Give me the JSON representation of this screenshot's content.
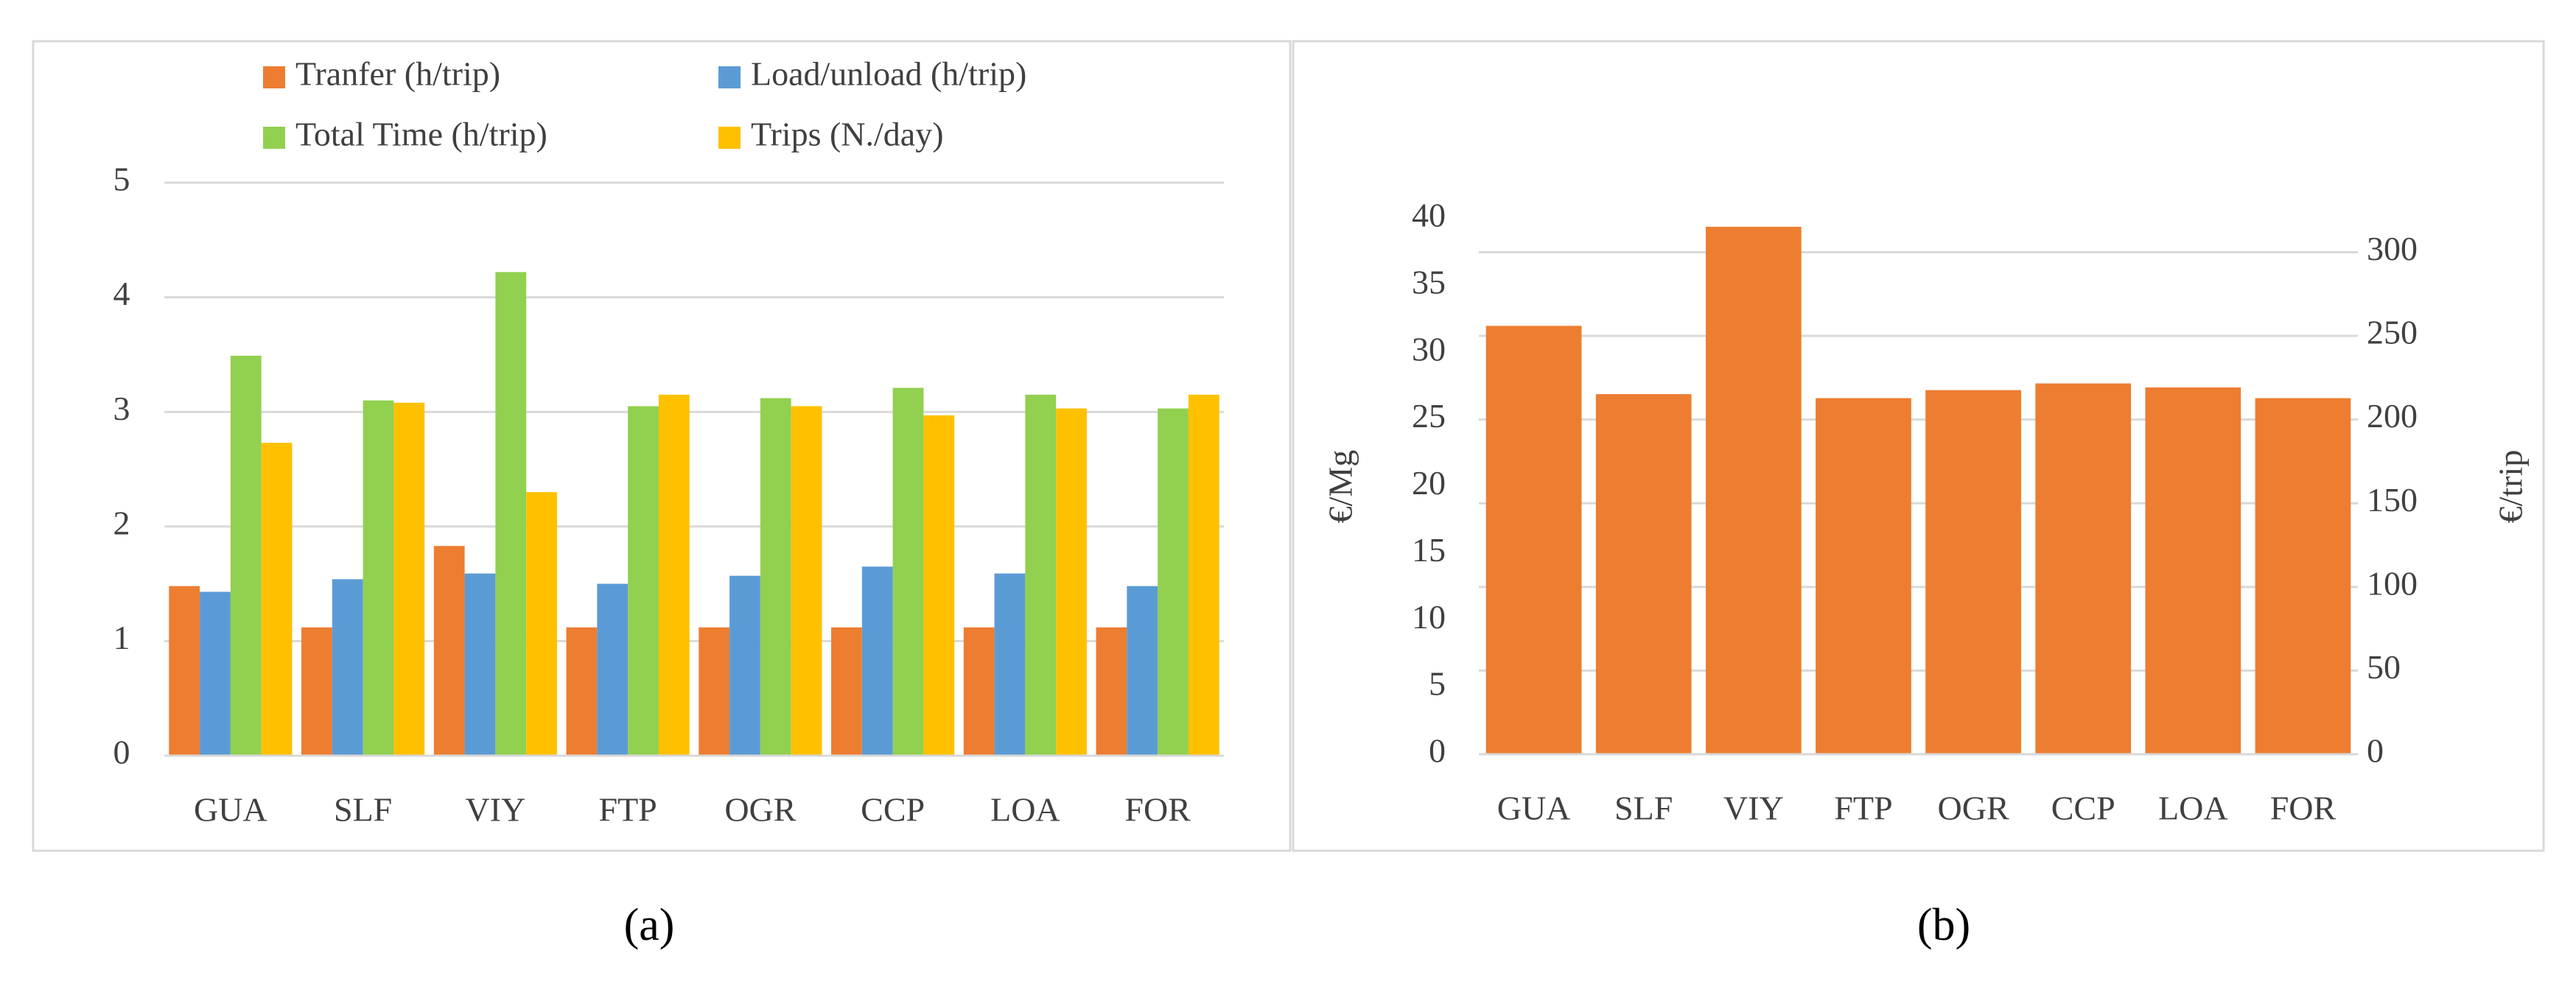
{
  "chart_data": [
    {
      "type": "bar",
      "caption": "(a)",
      "categories": [
        "GUA",
        "SLF",
        "VIY",
        "FTP",
        "OGR",
        "CCP",
        "LOA",
        "FOR"
      ],
      "series": [
        {
          "name": "Tranfer (h/trip)",
          "color": "#ED7D31",
          "values": [
            1.48,
            1.12,
            1.83,
            1.12,
            1.12,
            1.12,
            1.12,
            1.12
          ]
        },
        {
          "name": "Load/unload (h/trip)",
          "color": "#5B9BD5",
          "values": [
            1.43,
            1.54,
            1.59,
            1.5,
            1.57,
            1.65,
            1.59,
            1.48
          ]
        },
        {
          "name": "Total Time (h/trip)",
          "color": "#92D050",
          "values": [
            3.49,
            3.1,
            4.22,
            3.05,
            3.12,
            3.21,
            3.15,
            3.03
          ]
        },
        {
          "name": "Trips (N./day)",
          "color": "#FFC000",
          "values": [
            2.73,
            3.08,
            2.3,
            3.15,
            3.05,
            2.97,
            3.03,
            3.15
          ]
        }
      ],
      "ylim": [
        0,
        5
      ],
      "yticks": [
        0,
        1,
        2,
        3,
        4,
        5
      ],
      "grid": true,
      "legend": "top"
    },
    {
      "type": "bar",
      "caption": "(b)",
      "ylabel": "€/Mg",
      "y2label": "€/trip",
      "categories": [
        "GUA",
        "SLF",
        "VIY",
        "FTP",
        "OGR",
        "CCP",
        "LOA",
        "FOR"
      ],
      "values": [
        32.0,
        26.9,
        39.4,
        26.6,
        27.2,
        27.7,
        27.4,
        26.6
      ],
      "color": "#ED7D31",
      "ylim": [
        0,
        40
      ],
      "yticks": [
        0,
        5,
        10,
        15,
        20,
        25,
        30,
        35,
        40
      ],
      "y2lim": [
        0,
        320
      ],
      "y2ticks": [
        0,
        50,
        100,
        150,
        200,
        250,
        300
      ],
      "grid": true
    }
  ]
}
